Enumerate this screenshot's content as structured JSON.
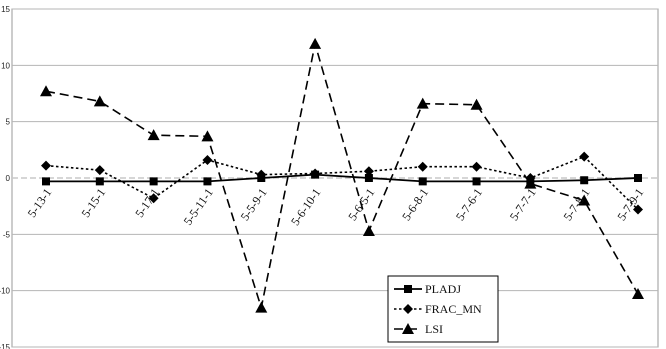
{
  "chart_data": {
    "type": "line",
    "categories": [
      "5-13-1",
      "5-15-1",
      "5-17-1",
      "5-5-11-1",
      "5-5-9-1",
      "5-6-10-1",
      "5-6-5-1",
      "5-6-8-1",
      "5-7-6-1",
      "5-7-7-1",
      "5-7-8-1",
      "5-7-9-1"
    ],
    "ylim": [
      -15,
      15
    ],
    "yticks": [
      "15",
      "10",
      "5",
      "0",
      "-5",
      "-10",
      "-15"
    ],
    "grid": true,
    "legend_position": "bottom-right",
    "series": [
      {
        "name": "PLADJ",
        "marker": "square",
        "line": "solid",
        "values": [
          -0.3,
          -0.3,
          -0.3,
          -0.3,
          0.0,
          0.3,
          0.0,
          -0.3,
          -0.3,
          -0.3,
          -0.2,
          0.0
        ]
      },
      {
        "name": "FRAC_MN",
        "marker": "diamond",
        "line": "dotted",
        "values": [
          1.1,
          0.7,
          -1.8,
          1.6,
          0.3,
          0.4,
          0.6,
          1.0,
          1.0,
          0.0,
          1.9,
          -2.8
        ]
      },
      {
        "name": "LSI",
        "marker": "triangle",
        "line": "dashed",
        "values": [
          7.7,
          6.8,
          3.8,
          3.7,
          -11.5,
          11.9,
          -4.7,
          6.6,
          6.5,
          -0.5,
          -2.0,
          -10.3
        ]
      }
    ]
  }
}
